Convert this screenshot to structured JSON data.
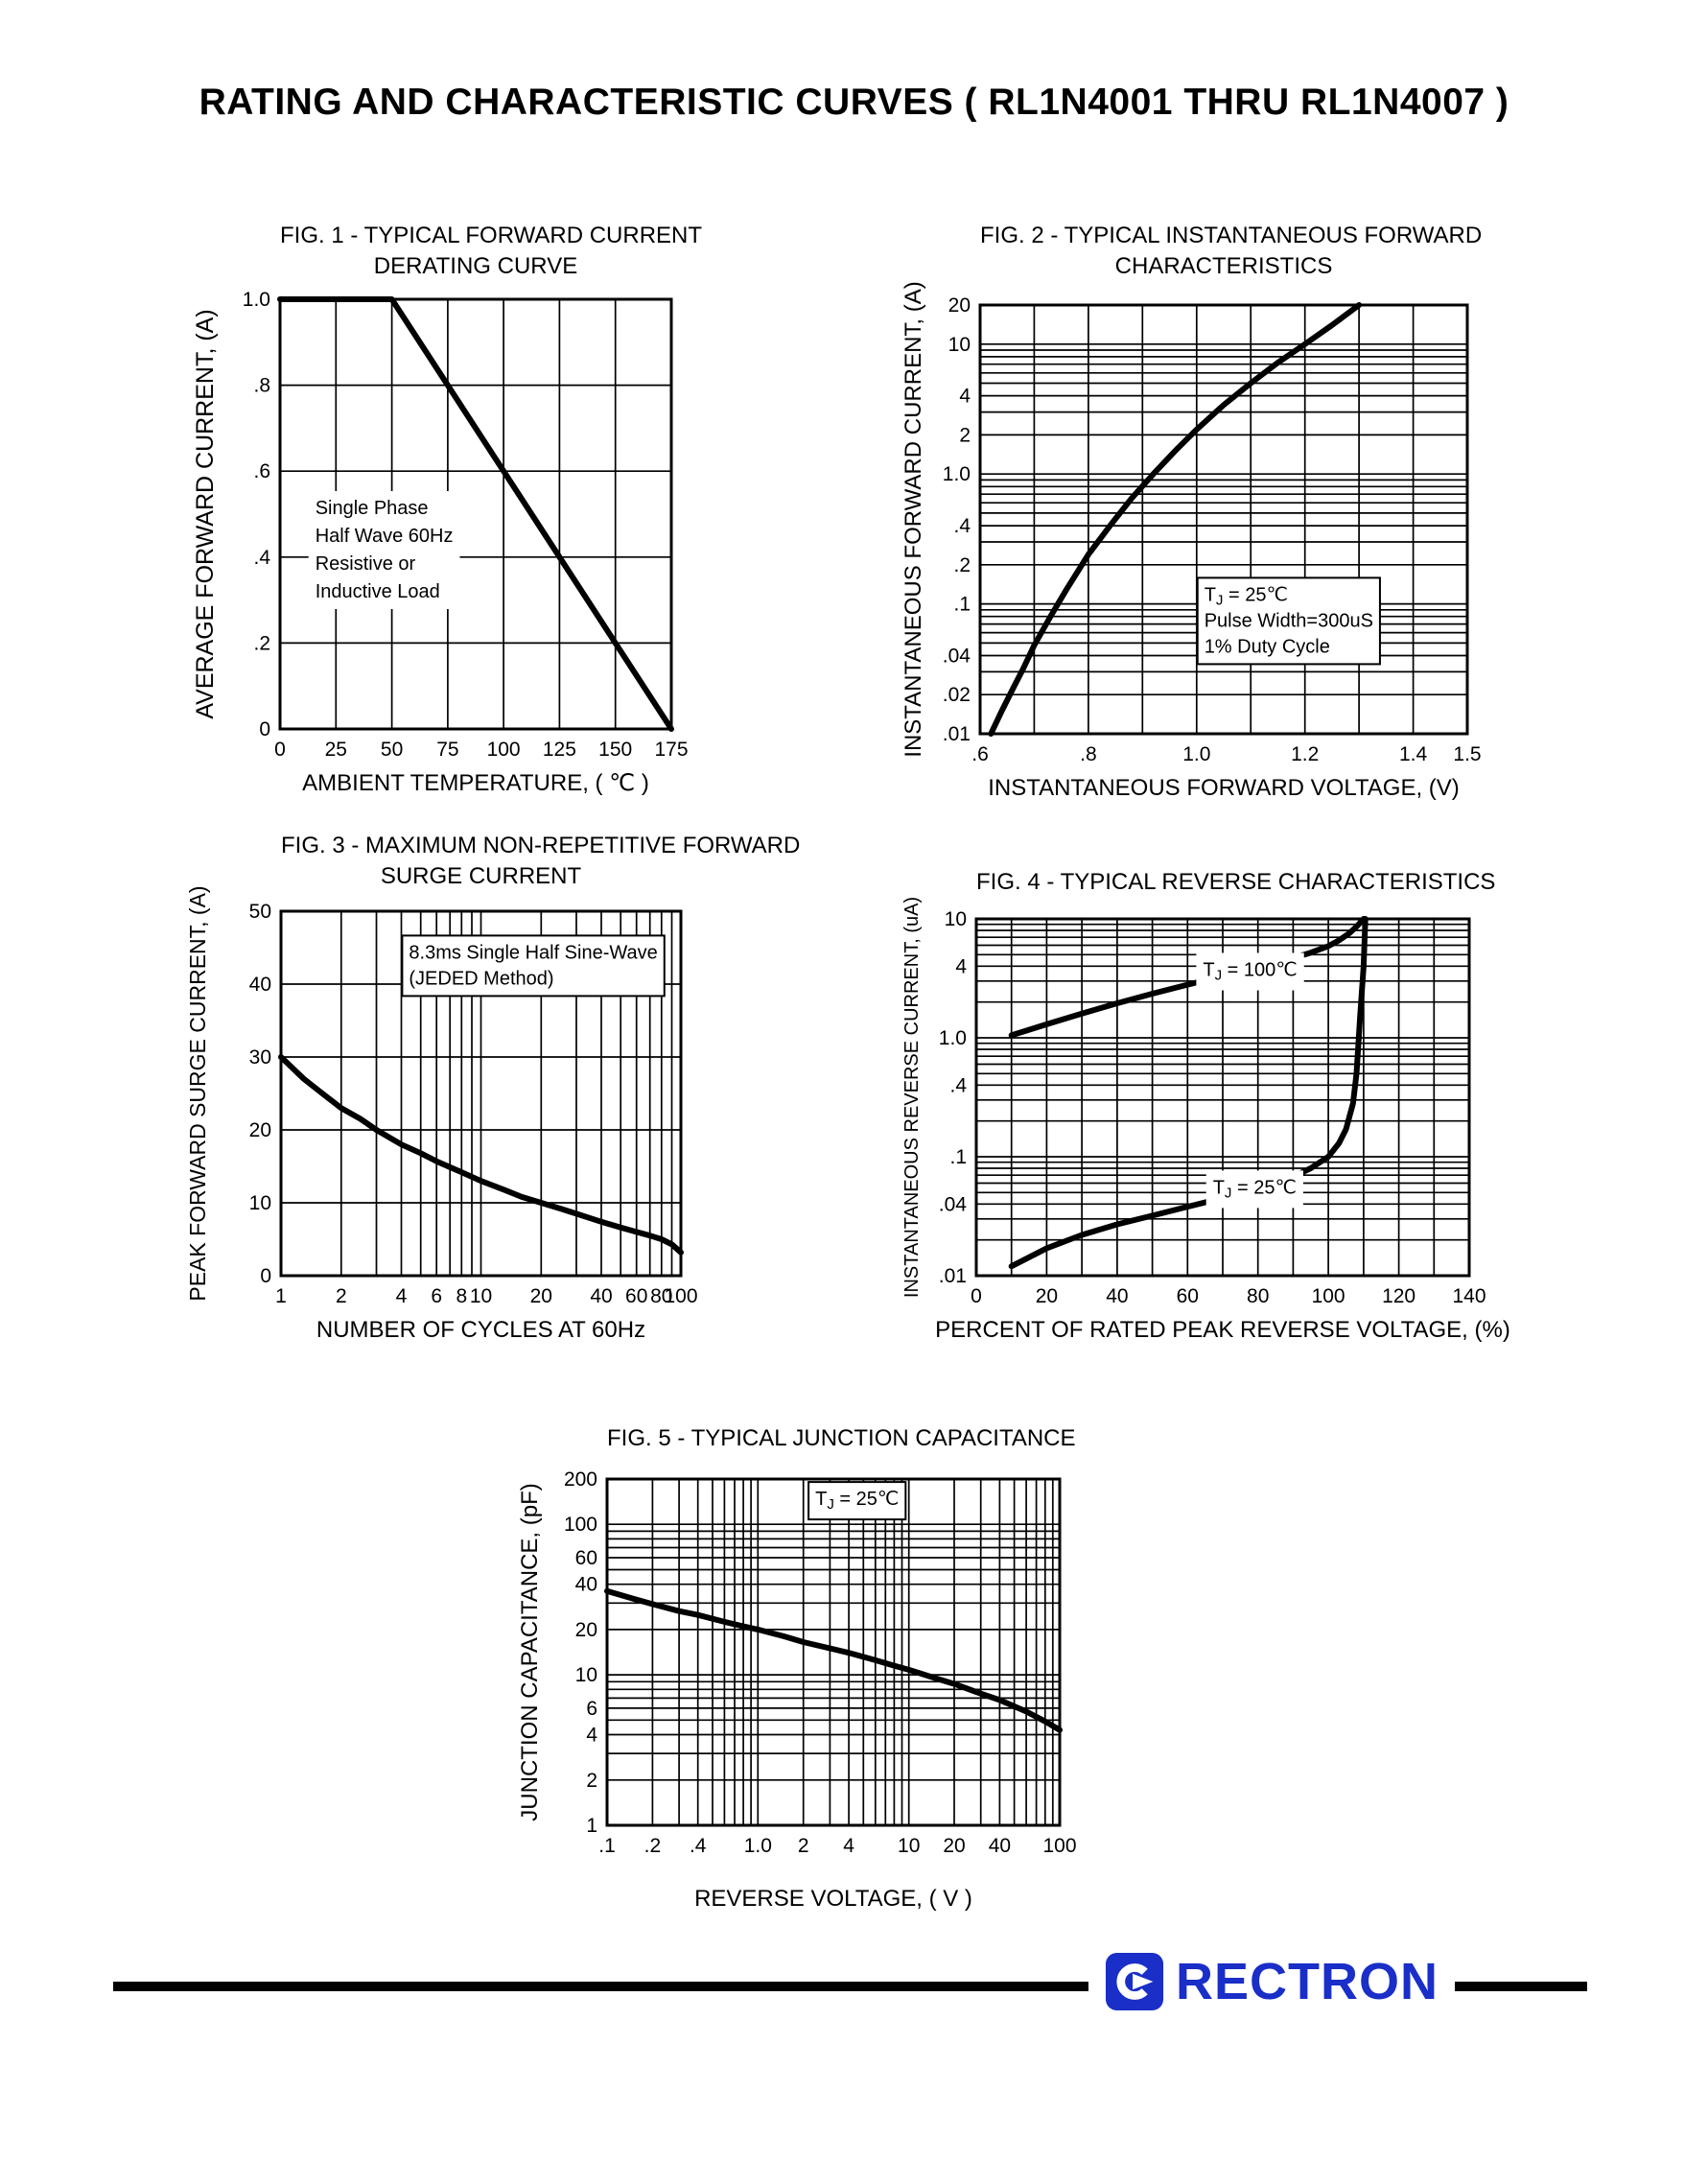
{
  "page": {
    "title": "RATING AND CHARACTERISTIC CURVES ( RL1N4001 THRU RL1N4007 )"
  },
  "footer": {
    "brand": "RECTRON",
    "brand_color": "#1a2ec8"
  },
  "chart_data": [
    {
      "id": "fig1",
      "type": "line",
      "title": "FIG. 1 - TYPICAL FORWARD CURRENT",
      "title2": "DERATING CURVE",
      "xlabel": "AMBIENT TEMPERATURE, ( ℃ )",
      "ylabel": "AVERAGE FORWARD CURRENT, (A)",
      "xscale": "linear",
      "yscale": "linear",
      "xlim": [
        0,
        175
      ],
      "ylim": [
        0,
        1.0
      ],
      "xgrid_step": 25,
      "ygrid_step": 0.2,
      "grid": "on",
      "legend": "none",
      "xticks": [
        [
          0,
          "0"
        ],
        [
          25,
          "25"
        ],
        [
          50,
          "50"
        ],
        [
          75,
          "75"
        ],
        [
          100,
          "100"
        ],
        [
          125,
          "125"
        ],
        [
          150,
          "150"
        ],
        [
          175,
          "175"
        ]
      ],
      "yticks": [
        [
          0,
          "0"
        ],
        [
          0.2,
          ".2"
        ],
        [
          0.4,
          ".4"
        ],
        [
          0.6,
          ".6"
        ],
        [
          0.8,
          ".8"
        ],
        [
          1.0,
          "1.0"
        ]
      ],
      "series": [
        {
          "name": "forward-current-derating",
          "points": [
            [
              0,
              1.0
            ],
            [
              50,
              1.0
            ],
            [
              175,
              0
            ]
          ]
        }
      ],
      "annotations": [
        {
          "fx": 0.09,
          "fy": 0.5,
          "boxed": false,
          "lines": [
            "Single Phase",
            "Half Wave 60Hz",
            "Resistive or",
            "Inductive Load"
          ]
        }
      ]
    },
    {
      "id": "fig2",
      "type": "line",
      "title": "FIG. 2 - TYPICAL INSTANTANEOUS FORWARD",
      "title2": "CHARACTERISTICS",
      "xlabel": "INSTANTANEOUS FORWARD VOLTAGE, (V)",
      "ylabel": "INSTANTANEOUS FORWARD CURRENT, (A)",
      "xscale": "linear",
      "yscale": "log",
      "xlim": [
        0.6,
        1.5
      ],
      "ylim": [
        0.01,
        20
      ],
      "xgrid_step": 0.1,
      "grid": "on",
      "legend": "none",
      "xticks": [
        [
          0.6,
          ".6"
        ],
        [
          0.8,
          ".8"
        ],
        [
          1.0,
          "1.0"
        ],
        [
          1.2,
          "1.2"
        ],
        [
          1.4,
          "1.4"
        ],
        [
          1.5,
          "1.5"
        ]
      ],
      "yticks": [
        [
          20,
          "20"
        ],
        [
          10,
          "10"
        ],
        [
          4,
          "4"
        ],
        [
          2,
          "2"
        ],
        [
          1,
          "1.0"
        ],
        [
          0.4,
          ".4"
        ],
        [
          0.2,
          ".2"
        ],
        [
          0.1,
          ".1"
        ],
        [
          0.04,
          ".04"
        ],
        [
          0.02,
          ".02"
        ],
        [
          0.01,
          ".01"
        ]
      ],
      "series": [
        {
          "name": "instantaneous-forward-characteristic",
          "points": [
            [
              0.62,
              0.01
            ],
            [
              0.64,
              0.015
            ],
            [
              0.66,
              0.022
            ],
            [
              0.68,
              0.032
            ],
            [
              0.7,
              0.048
            ],
            [
              0.73,
              0.08
            ],
            [
              0.76,
              0.13
            ],
            [
              0.8,
              0.24
            ],
            [
              0.84,
              0.4
            ],
            [
              0.88,
              0.65
            ],
            [
              0.92,
              1.0
            ],
            [
              0.96,
              1.5
            ],
            [
              1.0,
              2.2
            ],
            [
              1.05,
              3.4
            ],
            [
              1.1,
              5.0
            ],
            [
              1.15,
              7.2
            ],
            [
              1.2,
              10
            ],
            [
              1.25,
              14
            ],
            [
              1.3,
              20
            ]
          ]
        }
      ],
      "annotations": [
        {
          "fx": 0.46,
          "fy": 0.69,
          "boxed": true,
          "lines": [
            "TJ = 25℃",
            "Pulse Width=300uS",
            "1% Duty Cycle"
          ]
        }
      ]
    },
    {
      "id": "fig3",
      "type": "line",
      "title": "FIG. 3 - MAXIMUM NON-REPETITIVE FORWARD",
      "title2": "SURGE CURRENT",
      "xlabel": "NUMBER OF CYCLES AT 60Hz",
      "ylabel": "PEAK FORWARD SURGE CURRENT, (A)",
      "xscale": "log",
      "yscale": "linear",
      "xlim": [
        1,
        100
      ],
      "ylim": [
        0,
        50
      ],
      "ygrid_step": 10,
      "grid": "on",
      "legend": "none",
      "xticks": [
        [
          1,
          "1"
        ],
        [
          2,
          "2"
        ],
        [
          4,
          "4"
        ],
        [
          6,
          "6"
        ],
        [
          8,
          "8"
        ],
        [
          10,
          "10"
        ],
        [
          20,
          "20"
        ],
        [
          40,
          "40"
        ],
        [
          60,
          "60"
        ],
        [
          80,
          "80"
        ],
        [
          100,
          "100"
        ]
      ],
      "yticks": [
        [
          0,
          "0"
        ],
        [
          10,
          "10"
        ],
        [
          20,
          "20"
        ],
        [
          30,
          "30"
        ],
        [
          40,
          "40"
        ],
        [
          50,
          "50"
        ]
      ],
      "series": [
        {
          "name": "peak-forward-surge-current",
          "points": [
            [
              1,
              30
            ],
            [
              1.3,
              27
            ],
            [
              1.7,
              24.5
            ],
            [
              2,
              23
            ],
            [
              2.5,
              21.5
            ],
            [
              3,
              20
            ],
            [
              4,
              18
            ],
            [
              5,
              16.8
            ],
            [
              6,
              15.7
            ],
            [
              8,
              14.2
            ],
            [
              10,
              13
            ],
            [
              13,
              11.8
            ],
            [
              16,
              10.8
            ],
            [
              20,
              10
            ],
            [
              25,
              9.2
            ],
            [
              30,
              8.5
            ],
            [
              40,
              7.4
            ],
            [
              50,
              6.6
            ],
            [
              60,
              6
            ],
            [
              70,
              5.5
            ],
            [
              80,
              5
            ],
            [
              90,
              4.3
            ],
            [
              100,
              3.2
            ]
          ]
        }
      ],
      "annotations": [
        {
          "fx": 0.32,
          "fy": 0.13,
          "boxed": true,
          "lines": [
            "8.3ms Single Half Sine-Wave",
            "(JEDED Method)"
          ]
        }
      ]
    },
    {
      "id": "fig4",
      "type": "line",
      "title": "FIG. 4 - TYPICAL REVERSE CHARACTERISTICS",
      "xlabel": "PERCENT OF RATED PEAK REVERSE VOLTAGE, (%)",
      "ylabel": "INSTANTANEOUS REVERSE CURRENT, (uA)",
      "xscale": "linear",
      "yscale": "log",
      "xlim": [
        0,
        140
      ],
      "ylim": [
        0.01,
        10
      ],
      "xgrid_step": 10,
      "grid": "on",
      "legend": "none",
      "xticks": [
        [
          0,
          "0"
        ],
        [
          20,
          "20"
        ],
        [
          40,
          "40"
        ],
        [
          60,
          "60"
        ],
        [
          80,
          "80"
        ],
        [
          100,
          "100"
        ],
        [
          120,
          "120"
        ],
        [
          140,
          "140"
        ]
      ],
      "yticks": [
        [
          10,
          "10"
        ],
        [
          4,
          "4"
        ],
        [
          1,
          "1.0"
        ],
        [
          0.4,
          ".4"
        ],
        [
          0.1,
          ".1"
        ],
        [
          0.04,
          ".04"
        ],
        [
          0.01,
          ".01"
        ]
      ],
      "series": [
        {
          "name": "reverse-current-tj-100c",
          "points": [
            [
              10,
              1.05
            ],
            [
              20,
              1.3
            ],
            [
              30,
              1.6
            ],
            [
              40,
              1.95
            ],
            [
              50,
              2.35
            ],
            [
              60,
              2.8
            ],
            [
              70,
              3.3
            ],
            [
              80,
              3.9
            ],
            [
              90,
              4.7
            ],
            [
              95,
              5.2
            ],
            [
              100,
              5.9
            ],
            [
              103,
              6.6
            ],
            [
              106,
              7.6
            ],
            [
              108,
              8.6
            ],
            [
              110,
              10
            ]
          ]
        },
        {
          "name": "reverse-current-tj-25c",
          "points": [
            [
              10,
              0.012
            ],
            [
              20,
              0.017
            ],
            [
              30,
              0.022
            ],
            [
              40,
              0.027
            ],
            [
              50,
              0.032
            ],
            [
              60,
              0.038
            ],
            [
              70,
              0.045
            ],
            [
              80,
              0.054
            ],
            [
              90,
              0.068
            ],
            [
              95,
              0.08
            ],
            [
              100,
              0.1
            ],
            [
              103,
              0.13
            ],
            [
              105,
              0.17
            ],
            [
              107,
              0.28
            ],
            [
              108,
              0.5
            ],
            [
              109,
              1.5
            ],
            [
              110,
              4
            ],
            [
              110.5,
              10
            ]
          ]
        }
      ],
      "annotations": [
        {
          "fx": 0.46,
          "fy": 0.16,
          "boxed": false,
          "lines": [
            "TJ = 100℃"
          ]
        },
        {
          "fx": 0.48,
          "fy": 0.77,
          "boxed": false,
          "lines": [
            "TJ = 25℃"
          ]
        }
      ]
    },
    {
      "id": "fig5",
      "type": "line",
      "title": "FIG. 5 - TYPICAL JUNCTION CAPACITANCE",
      "xlabel": "REVERSE VOLTAGE, ( V )",
      "ylabel": "JUNCTION CAPACITANCE, (pF)",
      "xscale": "log",
      "yscale": "log",
      "xlim": [
        0.1,
        100
      ],
      "ylim": [
        1,
        200
      ],
      "grid": "on",
      "legend": "none",
      "xticks": [
        [
          0.1,
          ".1"
        ],
        [
          0.2,
          ".2"
        ],
        [
          0.4,
          ".4"
        ],
        [
          1,
          "1.0"
        ],
        [
          2,
          "2"
        ],
        [
          4,
          "4"
        ],
        [
          10,
          "10"
        ],
        [
          20,
          "20"
        ],
        [
          40,
          "40"
        ],
        [
          100,
          "100"
        ]
      ],
      "yticks": [
        [
          200,
          "200"
        ],
        [
          100,
          "100"
        ],
        [
          60,
          "60"
        ],
        [
          40,
          "40"
        ],
        [
          20,
          "20"
        ],
        [
          10,
          "10"
        ],
        [
          6,
          "6"
        ],
        [
          4,
          "4"
        ],
        [
          2,
          "2"
        ],
        [
          1,
          "1"
        ]
      ],
      "series": [
        {
          "name": "junction-capacitance",
          "points": [
            [
              0.1,
              36
            ],
            [
              0.15,
              32
            ],
            [
              0.2,
              29.5
            ],
            [
              0.3,
              26.5
            ],
            [
              0.4,
              25
            ],
            [
              0.6,
              22.5
            ],
            [
              0.8,
              21
            ],
            [
              1.0,
              20
            ],
            [
              1.5,
              18
            ],
            [
              2,
              16.5
            ],
            [
              3,
              15
            ],
            [
              4,
              14
            ],
            [
              6,
              12.5
            ],
            [
              8,
              11.5
            ],
            [
              10,
              10.8
            ],
            [
              15,
              9.5
            ],
            [
              20,
              8.7
            ],
            [
              30,
              7.5
            ],
            [
              40,
              6.8
            ],
            [
              60,
              5.7
            ],
            [
              80,
              4.9
            ],
            [
              100,
              4.3
            ]
          ]
        }
      ],
      "annotations": [
        {
          "fx": 0.46,
          "fy": 0.075,
          "boxed": true,
          "lines": [
            "TJ = 25℃"
          ]
        }
      ]
    }
  ]
}
